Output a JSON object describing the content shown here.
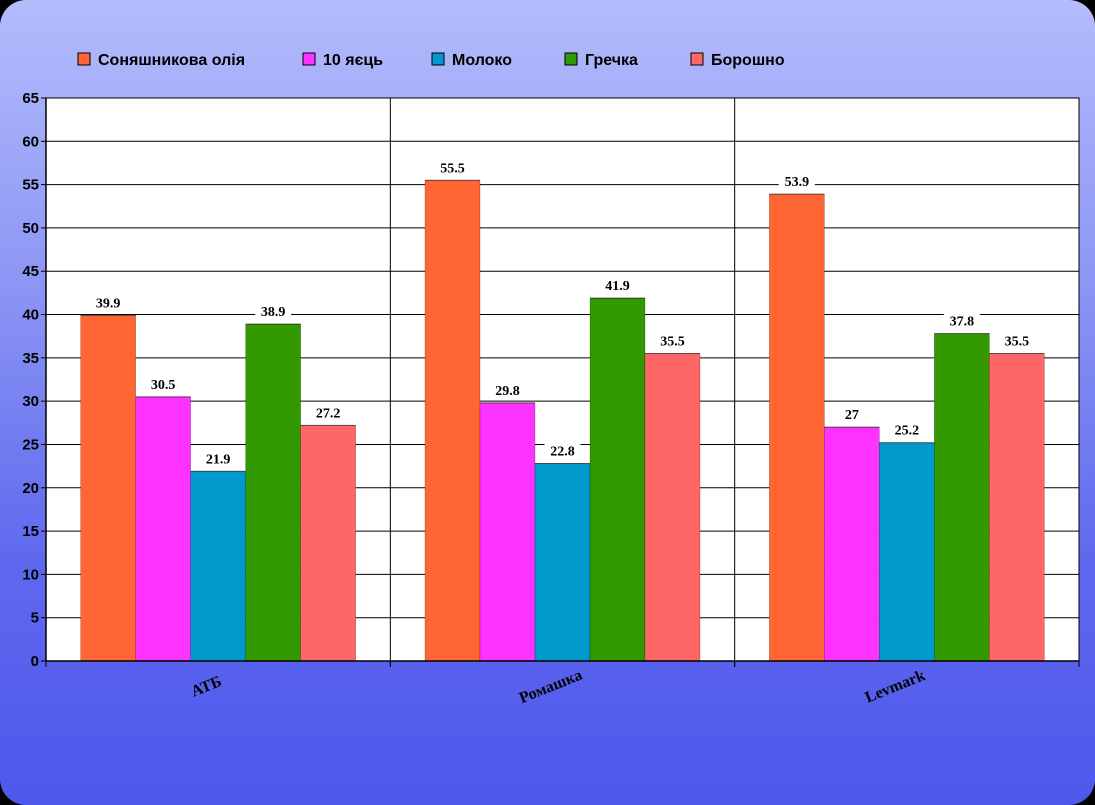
{
  "chart_data": {
    "type": "bar",
    "title": "",
    "xlabel": "",
    "ylabel": "",
    "ylim": [
      0,
      65
    ],
    "yticks": [
      0,
      5,
      10,
      15,
      20,
      25,
      30,
      35,
      40,
      45,
      50,
      55,
      60,
      65
    ],
    "grid": true,
    "legend_position": "top",
    "categories": [
      "АТБ",
      "Ромашка",
      "Levmark"
    ],
    "series": [
      {
        "name": "Соняшникова олія",
        "color": "#ff6633",
        "values": [
          39.9,
          55.5,
          53.9
        ]
      },
      {
        "name": "10 яєць",
        "color": "#ff33ff",
        "values": [
          30.5,
          29.8,
          27
        ]
      },
      {
        "name": "Молоко",
        "color": "#0099cc",
        "values": [
          21.9,
          22.8,
          25.2
        ]
      },
      {
        "name": "Гречка",
        "color": "#339900",
        "values": [
          38.9,
          41.9,
          37.8
        ]
      },
      {
        "name": "Борошно",
        "color": "#ff6666",
        "values": [
          27.2,
          35.5,
          35.5
        ]
      }
    ],
    "data_labels": [
      [
        "39.9",
        "55.5",
        "53.9"
      ],
      [
        "30.5",
        "29.8",
        "27"
      ],
      [
        "21.9",
        "22.8",
        "25.2"
      ],
      [
        "38.9",
        "41.9",
        "37.8"
      ],
      [
        "27.2",
        "35.5",
        "35.5"
      ]
    ]
  }
}
